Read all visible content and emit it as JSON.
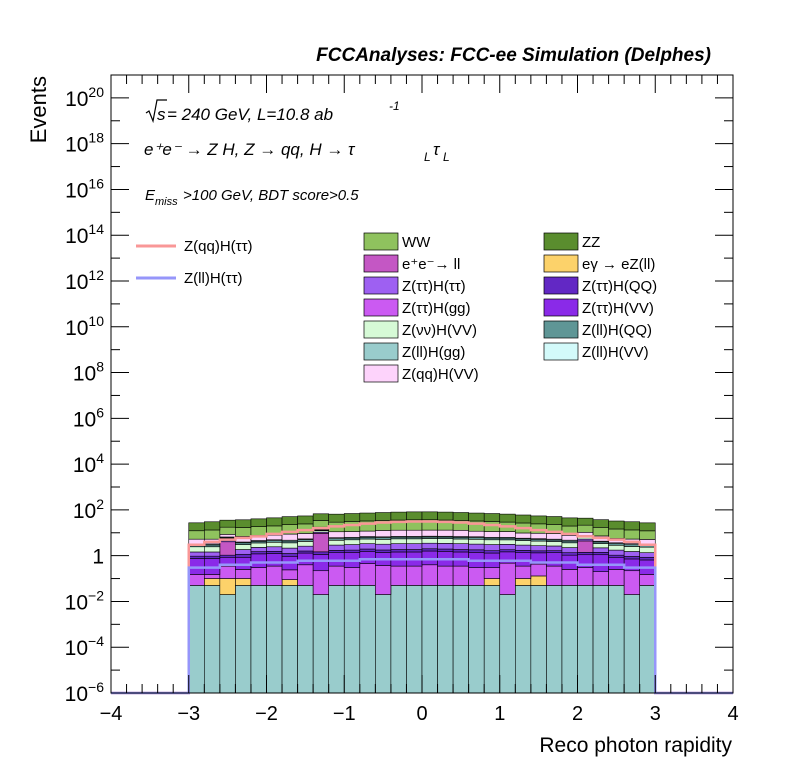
{
  "header": {
    "title": "FCCAnalyses: FCC-ee Simulation (Delphes)",
    "line1_sqrt": "s",
    "line1_rest": " = 240 GeV, L=10.8 ab",
    "line1_sup": "-1",
    "line2": "e⁺e⁻ → Z H, Z  → qq, H  → τ",
    "line2_sub1": "L",
    "line2_tau": "τ",
    "line2_sub2": "L",
    "line3_E": "E",
    "line3_sub": "miss",
    "line3_rest": ">100 GeV, BDT score>0.5"
  },
  "colors": {
    "WW": "#8fc25e",
    "ZZ": "#5a8d2e",
    "ee_ll": "#c457c4",
    "egamma_eZll": "#fcd26a",
    "Ztautau_Htautau": "#9e60f2",
    "Ztautau_HQQ": "#6228c4",
    "Ztautau_Hgg": "#cb5af2",
    "Ztautau_HVV": "#8a2ae8",
    "Znunu_HVV": "#d6fad6",
    "Zll_HQQ": "#5f9696",
    "Zll_Hgg": "#99cccc",
    "Zll_HVV": "#d3fafa",
    "Zqq_HVV": "#fdd3fb",
    "signal_qq": "#f99797",
    "signal_ll": "#9696fa"
  },
  "chart_data": {
    "type": "histogram-stacked",
    "xlabel": "Reco photon rapidity",
    "ylabel": "Events",
    "xlim": [
      -4,
      4
    ],
    "ylim": [
      1e-06,
      1e+21
    ],
    "ylog": true,
    "x_ticks": [
      "−4",
      "−3",
      "−2",
      "−1",
      "0",
      "1",
      "2",
      "3",
      "4"
    ],
    "y_ticks": [
      {
        "base": "10",
        "exp": "−6"
      },
      {
        "base": "10",
        "exp": "−4"
      },
      {
        "base": "10",
        "exp": "−2"
      },
      {
        "base": "1",
        "exp": ""
      },
      {
        "base": "10",
        "exp": "2"
      },
      {
        "base": "10",
        "exp": "4"
      },
      {
        "base": "10",
        "exp": "6"
      },
      {
        "base": "10",
        "exp": "8"
      },
      {
        "base": "10",
        "exp": "10"
      },
      {
        "base": "10",
        "exp": "12"
      },
      {
        "base": "10",
        "exp": "14"
      },
      {
        "base": "10",
        "exp": "16"
      },
      {
        "base": "10",
        "exp": "18"
      },
      {
        "base": "10",
        "exp": "20"
      }
    ],
    "bin_edges": [
      -3.0,
      -2.8,
      -2.6,
      -2.4,
      -2.2,
      -2.0,
      -1.8,
      -1.6,
      -1.4,
      -1.2,
      -1.0,
      -0.8,
      -0.6,
      -0.4,
      -0.2,
      0.0,
      0.2,
      0.4,
      0.6,
      0.8,
      1.0,
      1.2,
      1.4,
      1.6,
      1.8,
      2.0,
      2.2,
      2.4,
      2.6,
      2.8,
      3.0
    ],
    "stack": [
      {
        "key": "Zll_Hgg",
        "values": [
          0.05,
          0.05,
          0.02,
          0.05,
          0.05,
          0.05,
          0.05,
          0.05,
          0.02,
          0.05,
          0.05,
          0.05,
          0.02,
          0.05,
          0.05,
          0.05,
          0.05,
          0.05,
          0.05,
          0.05,
          0.02,
          0.05,
          0.05,
          0.05,
          0.05,
          0.05,
          0.05,
          0.05,
          0.02,
          0.05
        ]
      },
      {
        "key": "egamma_eZll",
        "values": [
          0,
          0.05,
          0.08,
          0.05,
          0,
          0,
          0.04,
          0,
          0,
          0,
          0,
          0,
          0,
          0,
          0,
          0,
          0,
          0,
          0,
          0.05,
          0,
          0.05,
          0.08,
          0,
          0,
          0,
          0,
          0,
          0,
          0
        ]
      },
      {
        "key": "Ztautau_Hgg",
        "values": [
          0.1,
          0.05,
          0.25,
          0.15,
          0.25,
          0.3,
          0.15,
          0.35,
          0.2,
          0.3,
          0.25,
          0.4,
          0.35,
          0.3,
          0.3,
          0.35,
          0.3,
          0.3,
          0.25,
          0.2,
          0.45,
          0.25,
          0.3,
          0.3,
          0.2,
          0.25,
          0.15,
          0.2,
          0.2,
          0.1
        ]
      },
      {
        "key": "Ztautau_HVV",
        "values": [
          0.6,
          0.6,
          0.5,
          0.6,
          0.9,
          0.9,
          0.7,
          0.9,
          0.9,
          1.0,
          1.1,
          1.1,
          1.0,
          1.1,
          1.1,
          1.2,
          1.2,
          1.1,
          1.1,
          1.0,
          1.0,
          1.0,
          0.9,
          1.0,
          0.8,
          0.8,
          0.9,
          0.6,
          0.5,
          0.5
        ]
      },
      {
        "key": "Ztautau_HQQ",
        "values": [
          0.2,
          0.2,
          0.2,
          0.3,
          0.3,
          0.3,
          0.3,
          0.3,
          0.35,
          0.35,
          0.35,
          0.4,
          0.4,
          0.4,
          0.4,
          0.4,
          0.4,
          0.4,
          0.4,
          0.35,
          0.35,
          0.35,
          0.3,
          0.3,
          0.3,
          0.3,
          0.3,
          0.2,
          0.2,
          0.2
        ]
      },
      {
        "key": "ee_ll",
        "values": [
          0,
          0,
          3,
          0,
          0,
          0,
          0,
          0,
          8,
          0,
          0,
          0,
          0,
          0,
          0,
          0,
          0,
          0,
          0,
          0,
          0,
          0,
          0,
          0,
          0,
          3,
          0,
          0,
          0,
          0
        ]
      },
      {
        "key": "Ztautau_Htautau",
        "values": [
          0.5,
          0.5,
          0.6,
          0.7,
          0.8,
          0.9,
          0.9,
          1.0,
          1.1,
          1.2,
          1.3,
          1.4,
          1.4,
          1.5,
          1.5,
          1.5,
          1.5,
          1.5,
          1.4,
          1.4,
          1.3,
          1.2,
          1.1,
          1.0,
          0.9,
          0.9,
          0.8,
          0.7,
          0.6,
          0.5
        ]
      },
      {
        "key": "Znunu_HVV",
        "values": [
          1.0,
          1.0,
          1.1,
          1.2,
          1.3,
          1.4,
          1.5,
          1.6,
          1.7,
          1.8,
          1.9,
          2.0,
          2.0,
          2.1,
          2.1,
          2.1,
          2.1,
          2.0,
          2.0,
          1.9,
          1.8,
          1.7,
          1.6,
          1.5,
          1.4,
          1.3,
          1.2,
          1.1,
          1.0,
          1.0
        ]
      },
      {
        "key": "Zll_HQQ",
        "values": [
          0.5,
          0.5,
          0.5,
          0.6,
          0.6,
          0.7,
          0.7,
          0.8,
          0.8,
          0.9,
          0.9,
          1.0,
          1.0,
          1.0,
          1.0,
          1.0,
          1.0,
          1.0,
          1.0,
          0.9,
          0.9,
          0.8,
          0.8,
          0.7,
          0.7,
          0.6,
          0.6,
          0.5,
          0.5,
          0.5
        ]
      },
      {
        "key": "Zll_HVV",
        "values": [
          0.3,
          0.3,
          0.3,
          0.3,
          0.4,
          0.4,
          0.4,
          0.4,
          0.5,
          0.5,
          0.5,
          0.5,
          0.5,
          0.5,
          0.5,
          0.5,
          0.5,
          0.5,
          0.5,
          0.5,
          0.5,
          0.4,
          0.4,
          0.4,
          0.4,
          0.3,
          0.3,
          0.3,
          0.3,
          0.3
        ]
      },
      {
        "key": "Zqq_HVV",
        "values": [
          2,
          2,
          2,
          3,
          3,
          3,
          4,
          4,
          4,
          5,
          5,
          5,
          6,
          6,
          6,
          6,
          6,
          6,
          5,
          5,
          5,
          4,
          4,
          4,
          3,
          3,
          3,
          2,
          2,
          2
        ]
      },
      {
        "key": "WW",
        "values": [
          7,
          8,
          9,
          10,
          11,
          12,
          14,
          15,
          17,
          18,
          20,
          21,
          22,
          23,
          24,
          24,
          23,
          22,
          21,
          20,
          18,
          17,
          15,
          14,
          12,
          11,
          10,
          9,
          8,
          7
        ]
      },
      {
        "key": "ZZ",
        "values": [
          15,
          17,
          18,
          20,
          22,
          25,
          28,
          30,
          33,
          36,
          38,
          40,
          42,
          44,
          45,
          45,
          44,
          42,
          40,
          38,
          36,
          33,
          30,
          28,
          25,
          22,
          20,
          18,
          17,
          15
        ]
      }
    ],
    "signal_lines": [
      {
        "key": "signal_qq",
        "values": [
          3,
          4,
          5,
          6,
          7,
          9,
          11,
          13,
          16,
          19,
          22,
          25,
          28,
          30,
          31,
          31,
          30,
          28,
          25,
          22,
          19,
          16,
          13,
          11,
          9,
          7,
          6,
          5,
          4,
          3
        ]
      },
      {
        "key": "signal_ll",
        "values": [
          0.3,
          0.3,
          0.4,
          0.4,
          0.5,
          0.5,
          0.5,
          0.6,
          0.6,
          0.6,
          0.6,
          0.7,
          0.7,
          0.7,
          0.7,
          0.7,
          0.7,
          0.7,
          0.6,
          0.6,
          0.6,
          0.6,
          0.5,
          0.5,
          0.5,
          0.4,
          0.4,
          0.4,
          0.3,
          0.3
        ]
      }
    ],
    "legend": {
      "lines": [
        {
          "key": "signal_qq",
          "label": "Z(qq)H(ττ)"
        },
        {
          "key": "signal_ll",
          "label": "Z(ll)H(ττ)"
        }
      ],
      "boxes": [
        {
          "key": "WW",
          "label": "WW"
        },
        {
          "key": "ZZ",
          "label": "ZZ"
        },
        {
          "key": "ee_ll",
          "label": "e⁺e⁻→ ll"
        },
        {
          "key": "egamma_eZll",
          "label": "eγ → eZ(ll)"
        },
        {
          "key": "Ztautau_Htautau",
          "label": "Z(ττ)H(ττ)"
        },
        {
          "key": "Ztautau_HQQ",
          "label": "Z(ττ)H(QQ)"
        },
        {
          "key": "Ztautau_Hgg",
          "label": "Z(ττ)H(gg)"
        },
        {
          "key": "Ztautau_HVV",
          "label": "Z(ττ)H(VV)"
        },
        {
          "key": "Znunu_HVV",
          "label": "Z(νν)H(VV)"
        },
        {
          "key": "Zll_HQQ",
          "label": "Z(ll)H(QQ)"
        },
        {
          "key": "Zll_Hgg",
          "label": "Z(ll)H(gg)"
        },
        {
          "key": "Zll_HVV",
          "label": "Z(ll)H(VV)"
        },
        {
          "key": "Zqq_HVV",
          "label": "Z(qq)H(VV)"
        }
      ]
    }
  }
}
